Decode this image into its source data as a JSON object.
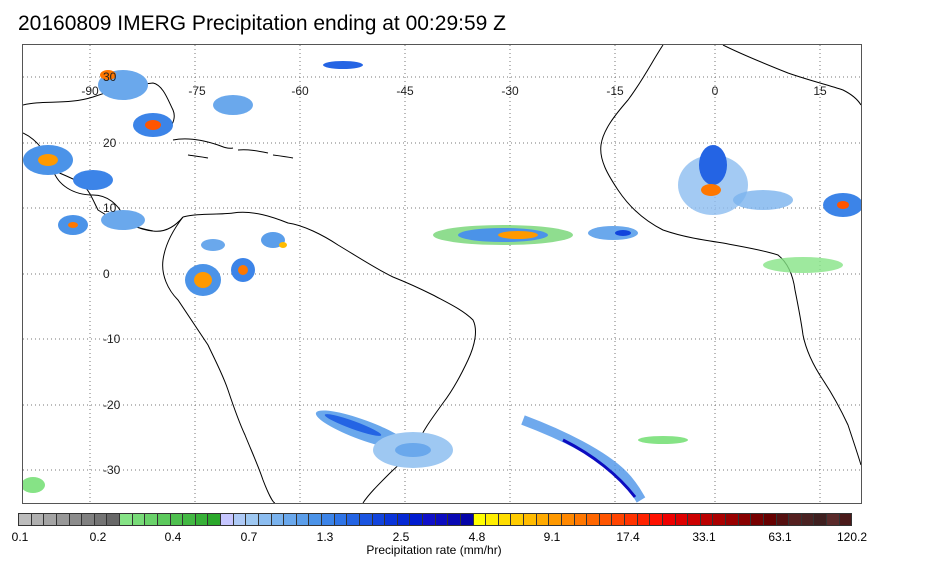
{
  "title": "20160809 IMERG Precipitation ending at 00:29:59 Z",
  "map": {
    "lon_labels": [
      "-90",
      "-75",
      "-60",
      "-45",
      "-30",
      "-15",
      "0",
      "15"
    ],
    "lat_labels": [
      "30",
      "20",
      "10",
      "0",
      "-10",
      "-20",
      "-30"
    ],
    "land_color": "#ffffff",
    "coast_color": "#000000",
    "grid": "dotted"
  },
  "colorbar": {
    "tick_labels": [
      "0.1",
      "0.2",
      "0.4",
      "0.7",
      "1.3",
      "2.5",
      "4.8",
      "9.1",
      "17.4",
      "33.1",
      "63.1",
      "120.2"
    ],
    "label": "Precipitation rate (mm/hr)",
    "colors": [
      "#bcbcbc",
      "#b0b0b0",
      "#a4a4a4",
      "#989898",
      "#8c8c8c",
      "#808080",
      "#747474",
      "#686868",
      "#86e386",
      "#78db78",
      "#6ad26a",
      "#5cc95c",
      "#4fc04f",
      "#43b843",
      "#37b037",
      "#2ba82b",
      "#c6c6ff",
      "#aecaf6",
      "#9ec8f2",
      "#8cbdf0",
      "#7ab3ee",
      "#6aa8ec",
      "#5b9eea",
      "#4b93e8",
      "#3c84e8",
      "#2f74e6",
      "#2464e4",
      "#1a54e0",
      "#1244dc",
      "#0a34d8",
      "#0528d4",
      "#001cd0",
      "#1010c8",
      "#0c0cc0",
      "#0808b4",
      "#0404a8",
      "#ffff00",
      "#ffee00",
      "#ffdd00",
      "#ffcc00",
      "#ffbb00",
      "#ffaa00",
      "#ff9900",
      "#ff8800",
      "#ff7700",
      "#ff6600",
      "#ff5500",
      "#ff4400",
      "#ff3300",
      "#ff2200",
      "#ff1100",
      "#ee0000",
      "#dd0000",
      "#cc0000",
      "#bb0000",
      "#aa0000",
      "#990000",
      "#880000",
      "#770000",
      "#660000",
      "#551010",
      "#552020",
      "#4a2222",
      "#3f1f1f",
      "#5a2a2a",
      "#4a1a1a"
    ]
  }
}
